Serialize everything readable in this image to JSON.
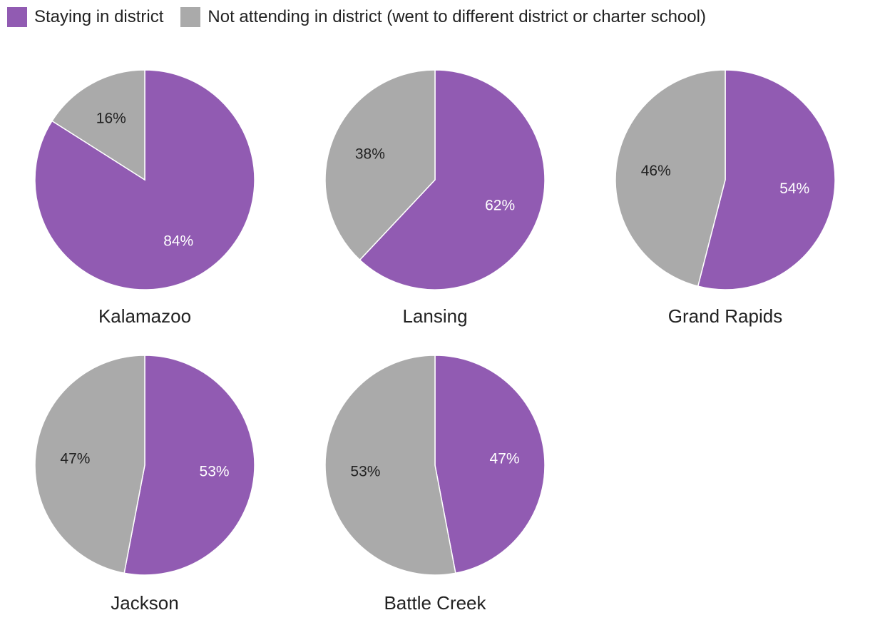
{
  "chart_data": {
    "type": "pie",
    "legend": [
      {
        "name": "Staying in district",
        "color": "#915BB2"
      },
      {
        "name": "Not attending in district (went to different district or charter school)",
        "color": "#AAAAAA"
      }
    ],
    "pies": [
      {
        "title": "Kalamazoo",
        "slices": [
          {
            "label": "Staying in district",
            "value": 84,
            "text": "84%"
          },
          {
            "label": "Not attending in district",
            "value": 16,
            "text": "16%"
          }
        ]
      },
      {
        "title": "Lansing",
        "slices": [
          {
            "label": "Staying in district",
            "value": 62,
            "text": "62%"
          },
          {
            "label": "Not attending in district",
            "value": 38,
            "text": "38%"
          }
        ]
      },
      {
        "title": "Grand Rapids",
        "slices": [
          {
            "label": "Staying in district",
            "value": 54,
            "text": "54%"
          },
          {
            "label": "Not attending in district",
            "value": 46,
            "text": "46%"
          }
        ]
      },
      {
        "title": "Jackson",
        "slices": [
          {
            "label": "Staying in district",
            "value": 53,
            "text": "53%"
          },
          {
            "label": "Not attending in district",
            "value": 47,
            "text": "47%"
          }
        ]
      },
      {
        "title": "Battle Creek",
        "slices": [
          {
            "label": "Staying in district",
            "value": 47,
            "text": "47%"
          },
          {
            "label": "Not attending in district",
            "value": 53,
            "text": "53%"
          }
        ]
      }
    ],
    "slice_label_colors": [
      "#FFFFFF",
      "#222222"
    ]
  }
}
